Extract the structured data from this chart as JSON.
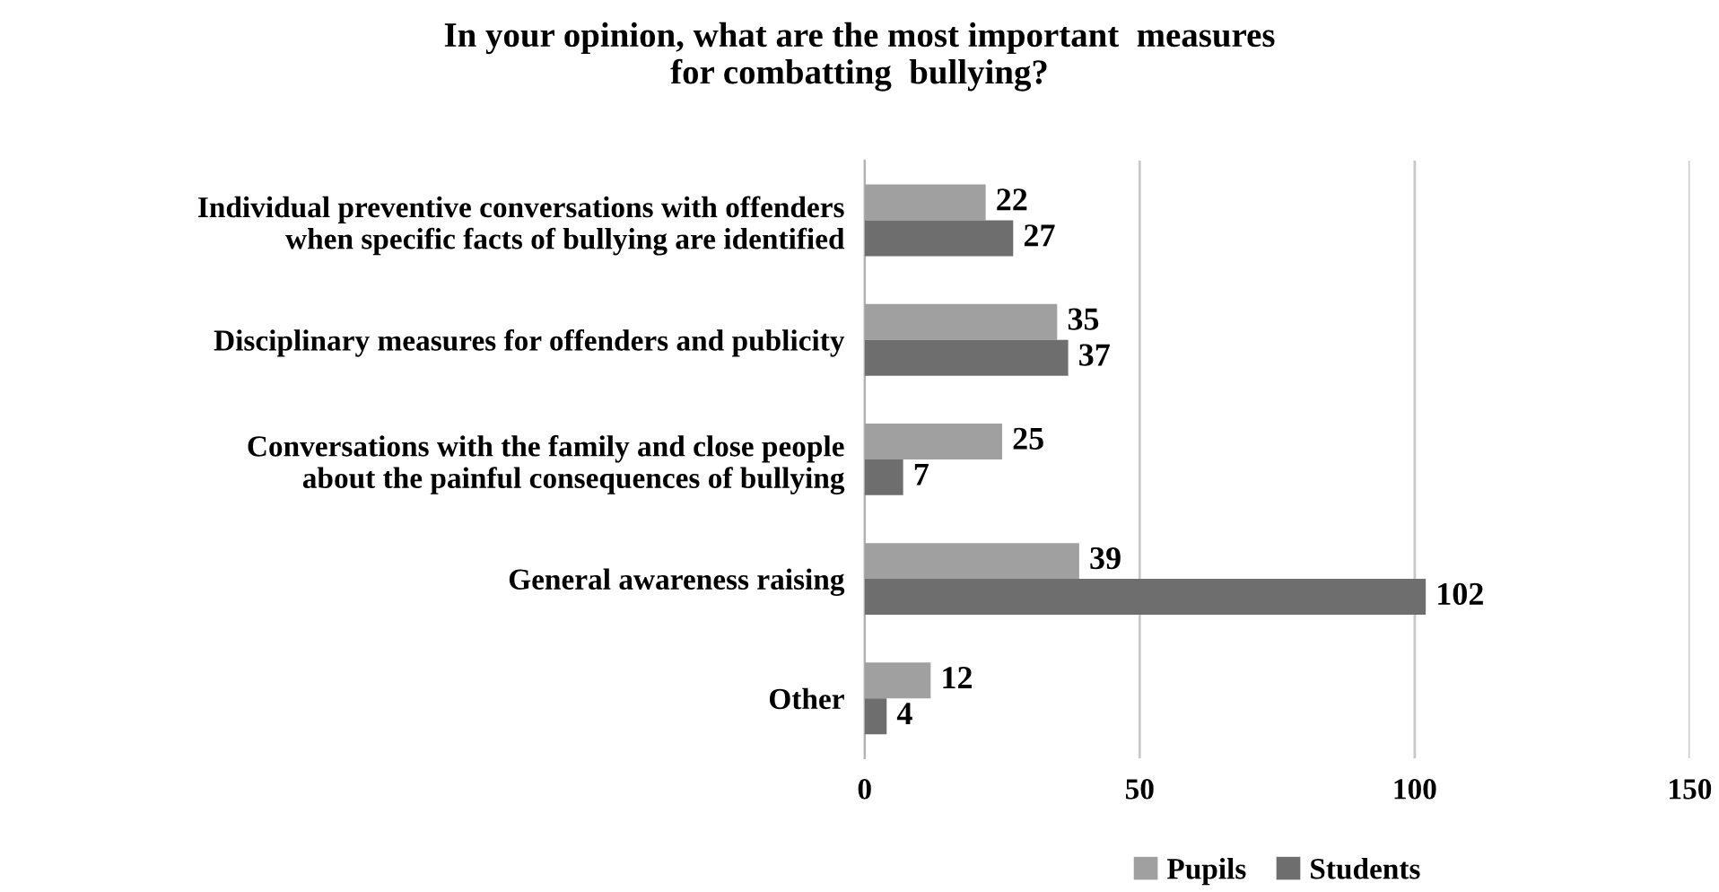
{
  "chart_data": {
    "type": "bar",
    "orientation": "horizontal",
    "title": "In your opinion, what are the most important  measures\nfor combatting  bullying?",
    "categories": [
      "Individual preventive conversations with offenders\nwhen specific facts of bullying are identified",
      "Disciplinary measures for offenders and publicity",
      "Conversations with the family and close people\nabout the painful consequences of bullying",
      "General awareness raising",
      "Other"
    ],
    "series": [
      {
        "name": "Pupils",
        "color": "#a0a0a0",
        "values": [
          22,
          35,
          25,
          39,
          12
        ]
      },
      {
        "name": "Students",
        "color": "#6e6e6e",
        "values": [
          27,
          37,
          7,
          102,
          4
        ]
      }
    ],
    "xlim": [
      0,
      150
    ],
    "xticks": [
      0,
      50,
      100,
      150
    ],
    "grid": "x",
    "legend": "bottom",
    "data_labels": true
  }
}
